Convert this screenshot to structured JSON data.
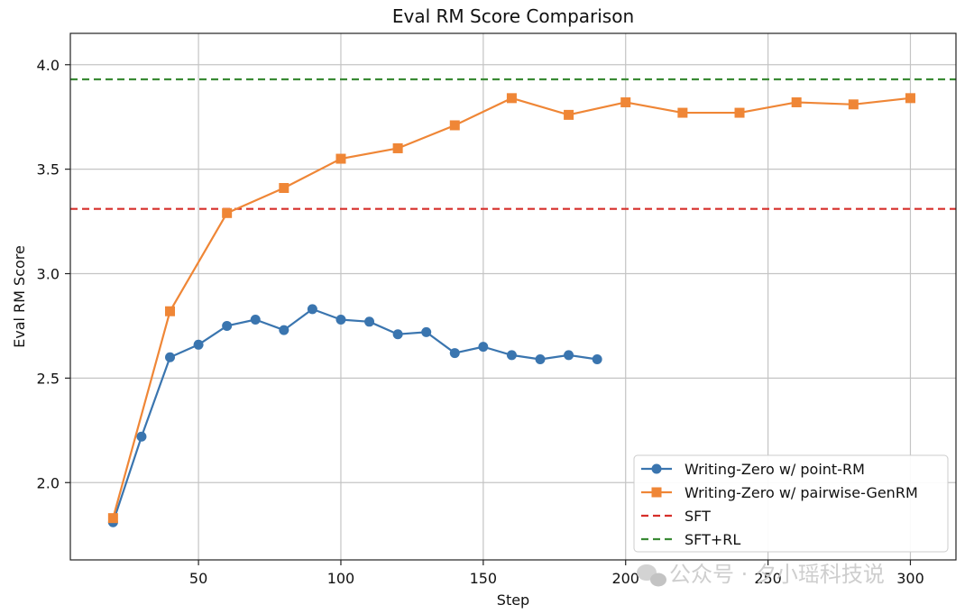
{
  "chart_data": {
    "type": "line",
    "title": "Eval RM Score Comparison",
    "xlabel": "Step",
    "ylabel": "Eval RM Score",
    "xlim": [
      5,
      316
    ],
    "ylim": [
      1.63,
      4.15
    ],
    "xticks": [
      50,
      100,
      150,
      200,
      250,
      300
    ],
    "yticks": [
      2.0,
      2.5,
      3.0,
      3.5,
      4.0
    ],
    "ytick_labels": [
      "2.0",
      "2.5",
      "3.0",
      "3.5",
      "4.0"
    ],
    "grid": true,
    "legend_position": "lower-right",
    "series": [
      {
        "name": "Writing-Zero w/ point-RM",
        "color": "#3a75af",
        "marker": "circle",
        "x": [
          20,
          30,
          40,
          50,
          60,
          70,
          80,
          90,
          100,
          110,
          120,
          130,
          140,
          150,
          160,
          170,
          180,
          190
        ],
        "y": [
          1.81,
          2.22,
          2.6,
          2.66,
          2.75,
          2.78,
          2.73,
          2.83,
          2.78,
          2.77,
          2.71,
          2.72,
          2.62,
          2.65,
          2.61,
          2.59,
          2.61,
          2.59
        ]
      },
      {
        "name": "Writing-Zero w/ pairwise-GenRM",
        "color": "#ef8636",
        "marker": "square",
        "x": [
          20,
          40,
          60,
          80,
          100,
          120,
          140,
          160,
          180,
          200,
          220,
          240,
          260,
          280,
          300
        ],
        "y": [
          1.83,
          2.82,
          3.29,
          3.41,
          3.55,
          3.6,
          3.71,
          3.84,
          3.76,
          3.82,
          3.77,
          3.77,
          3.82,
          3.81,
          3.84
        ]
      }
    ],
    "reference_lines": [
      {
        "name": "SFT",
        "y": 3.31,
        "color": "#d62f2a",
        "style": "dashed"
      },
      {
        "name": "SFT+RL",
        "y": 3.93,
        "color": "#3a8a35",
        "style": "dashed"
      }
    ]
  },
  "watermark": "公众号 · 夕小瑶科技说",
  "watermark_icon": "wechat-icon"
}
